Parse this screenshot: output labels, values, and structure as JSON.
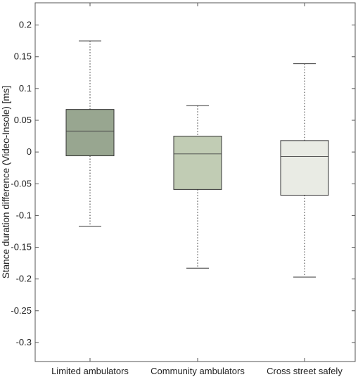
{
  "chart_data": {
    "type": "box",
    "title": "",
    "xlabel": "",
    "ylabel": "Stance duration difference (Video-Insole) [ms]",
    "ylim": [
      -0.33,
      0.235
    ],
    "yticks": [
      0.2,
      0.15,
      0.1,
      0.05,
      0,
      -0.05,
      -0.1,
      -0.15,
      -0.2,
      -0.25,
      -0.3
    ],
    "ytick_labels": [
      "0.2",
      "0.15",
      "0.1",
      "0.05",
      "0",
      "-0.05",
      "-0.1",
      "-0.15",
      "-0.2",
      "-0.25",
      "-0.3"
    ],
    "grid": false,
    "categories": [
      "Limited ambulators",
      "Community ambulators",
      "Cross street safely"
    ],
    "boxes": [
      {
        "whisker_high": 0.175,
        "q3": 0.067,
        "median": 0.033,
        "q1": -0.006,
        "whisker_low": -0.117
      },
      {
        "whisker_high": 0.073,
        "q3": 0.025,
        "median": -0.003,
        "q1": -0.059,
        "whisker_low": -0.183
      },
      {
        "whisker_high": 0.139,
        "q3": 0.018,
        "median": -0.007,
        "q1": -0.068,
        "whisker_low": -0.197
      }
    ],
    "colors": [
      "#98a690",
      "#c1ccb4",
      "#e9ebe4"
    ]
  }
}
